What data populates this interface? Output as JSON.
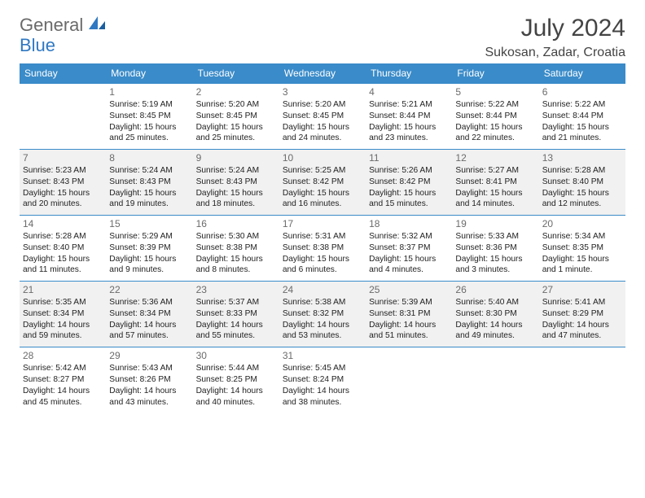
{
  "brand": {
    "part1": "General",
    "part2": "Blue"
  },
  "title": "July 2024",
  "location": "Sukosan, Zadar, Croatia",
  "colors": {
    "header_bg": "#3a8bc9",
    "header_text": "#ffffff",
    "alt_row_bg": "#f1f1f1",
    "row_bg": "#ffffff",
    "brand_gray": "#6a6a6a",
    "brand_blue": "#2f78c2",
    "border": "#3a8bc9",
    "daynum_color": "#6b6b6b"
  },
  "day_headers": [
    "Sunday",
    "Monday",
    "Tuesday",
    "Wednesday",
    "Thursday",
    "Friday",
    "Saturday"
  ],
  "weeks": [
    [
      {
        "n": "",
        "sr": "",
        "ss": "",
        "dl": ""
      },
      {
        "n": "1",
        "sr": "Sunrise: 5:19 AM",
        "ss": "Sunset: 8:45 PM",
        "dl": "Daylight: 15 hours and 25 minutes."
      },
      {
        "n": "2",
        "sr": "Sunrise: 5:20 AM",
        "ss": "Sunset: 8:45 PM",
        "dl": "Daylight: 15 hours and 25 minutes."
      },
      {
        "n": "3",
        "sr": "Sunrise: 5:20 AM",
        "ss": "Sunset: 8:45 PM",
        "dl": "Daylight: 15 hours and 24 minutes."
      },
      {
        "n": "4",
        "sr": "Sunrise: 5:21 AM",
        "ss": "Sunset: 8:44 PM",
        "dl": "Daylight: 15 hours and 23 minutes."
      },
      {
        "n": "5",
        "sr": "Sunrise: 5:22 AM",
        "ss": "Sunset: 8:44 PM",
        "dl": "Daylight: 15 hours and 22 minutes."
      },
      {
        "n": "6",
        "sr": "Sunrise: 5:22 AM",
        "ss": "Sunset: 8:44 PM",
        "dl": "Daylight: 15 hours and 21 minutes."
      }
    ],
    [
      {
        "n": "7",
        "sr": "Sunrise: 5:23 AM",
        "ss": "Sunset: 8:43 PM",
        "dl": "Daylight: 15 hours and 20 minutes."
      },
      {
        "n": "8",
        "sr": "Sunrise: 5:24 AM",
        "ss": "Sunset: 8:43 PM",
        "dl": "Daylight: 15 hours and 19 minutes."
      },
      {
        "n": "9",
        "sr": "Sunrise: 5:24 AM",
        "ss": "Sunset: 8:43 PM",
        "dl": "Daylight: 15 hours and 18 minutes."
      },
      {
        "n": "10",
        "sr": "Sunrise: 5:25 AM",
        "ss": "Sunset: 8:42 PM",
        "dl": "Daylight: 15 hours and 16 minutes."
      },
      {
        "n": "11",
        "sr": "Sunrise: 5:26 AM",
        "ss": "Sunset: 8:42 PM",
        "dl": "Daylight: 15 hours and 15 minutes."
      },
      {
        "n": "12",
        "sr": "Sunrise: 5:27 AM",
        "ss": "Sunset: 8:41 PM",
        "dl": "Daylight: 15 hours and 14 minutes."
      },
      {
        "n": "13",
        "sr": "Sunrise: 5:28 AM",
        "ss": "Sunset: 8:40 PM",
        "dl": "Daylight: 15 hours and 12 minutes."
      }
    ],
    [
      {
        "n": "14",
        "sr": "Sunrise: 5:28 AM",
        "ss": "Sunset: 8:40 PM",
        "dl": "Daylight: 15 hours and 11 minutes."
      },
      {
        "n": "15",
        "sr": "Sunrise: 5:29 AM",
        "ss": "Sunset: 8:39 PM",
        "dl": "Daylight: 15 hours and 9 minutes."
      },
      {
        "n": "16",
        "sr": "Sunrise: 5:30 AM",
        "ss": "Sunset: 8:38 PM",
        "dl": "Daylight: 15 hours and 8 minutes."
      },
      {
        "n": "17",
        "sr": "Sunrise: 5:31 AM",
        "ss": "Sunset: 8:38 PM",
        "dl": "Daylight: 15 hours and 6 minutes."
      },
      {
        "n": "18",
        "sr": "Sunrise: 5:32 AM",
        "ss": "Sunset: 8:37 PM",
        "dl": "Daylight: 15 hours and 4 minutes."
      },
      {
        "n": "19",
        "sr": "Sunrise: 5:33 AM",
        "ss": "Sunset: 8:36 PM",
        "dl": "Daylight: 15 hours and 3 minutes."
      },
      {
        "n": "20",
        "sr": "Sunrise: 5:34 AM",
        "ss": "Sunset: 8:35 PM",
        "dl": "Daylight: 15 hours and 1 minute."
      }
    ],
    [
      {
        "n": "21",
        "sr": "Sunrise: 5:35 AM",
        "ss": "Sunset: 8:34 PM",
        "dl": "Daylight: 14 hours and 59 minutes."
      },
      {
        "n": "22",
        "sr": "Sunrise: 5:36 AM",
        "ss": "Sunset: 8:34 PM",
        "dl": "Daylight: 14 hours and 57 minutes."
      },
      {
        "n": "23",
        "sr": "Sunrise: 5:37 AM",
        "ss": "Sunset: 8:33 PM",
        "dl": "Daylight: 14 hours and 55 minutes."
      },
      {
        "n": "24",
        "sr": "Sunrise: 5:38 AM",
        "ss": "Sunset: 8:32 PM",
        "dl": "Daylight: 14 hours and 53 minutes."
      },
      {
        "n": "25",
        "sr": "Sunrise: 5:39 AM",
        "ss": "Sunset: 8:31 PM",
        "dl": "Daylight: 14 hours and 51 minutes."
      },
      {
        "n": "26",
        "sr": "Sunrise: 5:40 AM",
        "ss": "Sunset: 8:30 PM",
        "dl": "Daylight: 14 hours and 49 minutes."
      },
      {
        "n": "27",
        "sr": "Sunrise: 5:41 AM",
        "ss": "Sunset: 8:29 PM",
        "dl": "Daylight: 14 hours and 47 minutes."
      }
    ],
    [
      {
        "n": "28",
        "sr": "Sunrise: 5:42 AM",
        "ss": "Sunset: 8:27 PM",
        "dl": "Daylight: 14 hours and 45 minutes."
      },
      {
        "n": "29",
        "sr": "Sunrise: 5:43 AM",
        "ss": "Sunset: 8:26 PM",
        "dl": "Daylight: 14 hours and 43 minutes."
      },
      {
        "n": "30",
        "sr": "Sunrise: 5:44 AM",
        "ss": "Sunset: 8:25 PM",
        "dl": "Daylight: 14 hours and 40 minutes."
      },
      {
        "n": "31",
        "sr": "Sunrise: 5:45 AM",
        "ss": "Sunset: 8:24 PM",
        "dl": "Daylight: 14 hours and 38 minutes."
      },
      {
        "n": "",
        "sr": "",
        "ss": "",
        "dl": ""
      },
      {
        "n": "",
        "sr": "",
        "ss": "",
        "dl": ""
      },
      {
        "n": "",
        "sr": "",
        "ss": "",
        "dl": ""
      }
    ]
  ]
}
